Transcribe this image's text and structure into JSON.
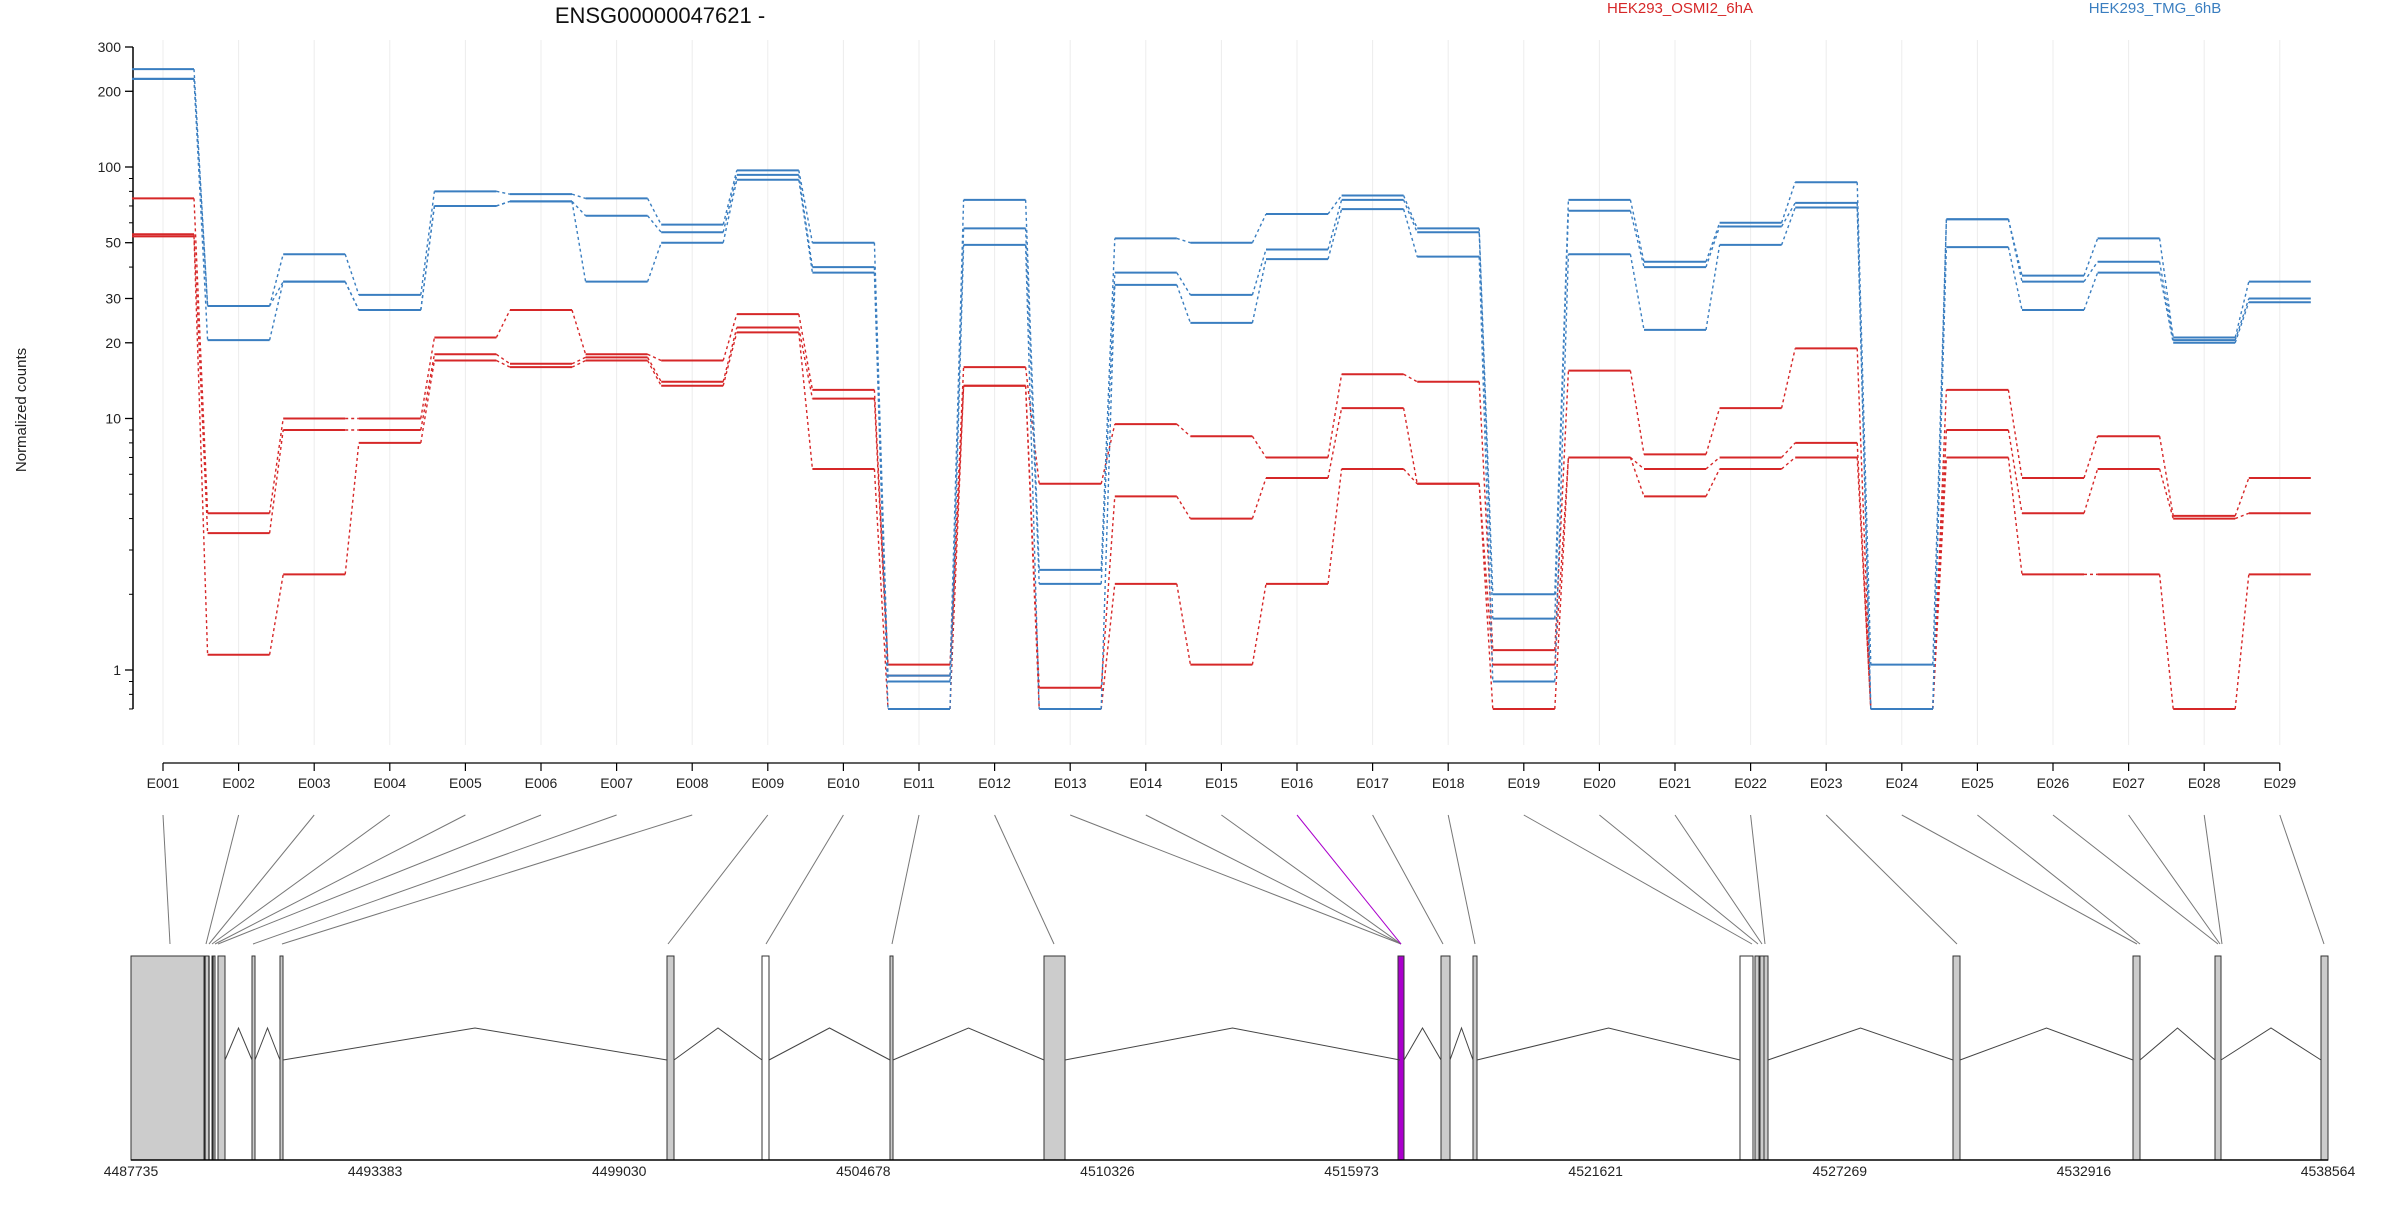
{
  "chart_data": {
    "type": "line",
    "title": "ENSG00000047621 -",
    "ylabel": "Normalized counts",
    "xlabel": "",
    "yscale": "log",
    "ylim": [
      0.7,
      300
    ],
    "ytick_labels": [
      {
        "value": 1,
        "label": "1"
      },
      {
        "value": 10,
        "label": "10"
      },
      {
        "value": 20,
        "label": "20"
      },
      {
        "value": 30,
        "label": "30"
      },
      {
        "value": 50,
        "label": "50"
      },
      {
        "value": 100,
        "label": "100"
      },
      {
        "value": 200,
        "label": "200"
      },
      {
        "value": 300,
        "label": "300"
      }
    ],
    "ytick_minor": [
      0.7,
      0.8,
      0.9,
      2,
      3,
      4,
      5,
      6,
      7,
      8,
      9,
      40,
      60,
      70,
      80,
      90
    ],
    "categories": [
      "E001",
      "E002",
      "E003",
      "E004",
      "E005",
      "E006",
      "E007",
      "E008",
      "E009",
      "E010",
      "E011",
      "E012",
      "E013",
      "E014",
      "E015",
      "E016",
      "E017",
      "E018",
      "E019",
      "E020",
      "E021",
      "E022",
      "E023",
      "E024",
      "E025",
      "E026",
      "E027",
      "E028",
      "E029"
    ],
    "grid": true,
    "legend_placement": "top",
    "series": [
      {
        "name": "HEK293_OSMI2_6hA",
        "color": "#d62728",
        "values": [
          75,
          4.2,
          10,
          10,
          21,
          27,
          18,
          17,
          26,
          13,
          1.05,
          16,
          5.5,
          9.5,
          8.5,
          7,
          15,
          14,
          1.2,
          15.5,
          7.2,
          11,
          19,
          0.7,
          13,
          5.8,
          8.5,
          4.1,
          5.8
        ]
      },
      {
        "name": "HEK293_OSMI2_6hA",
        "color": "#d62728",
        "values": [
          54,
          3.5,
          9,
          9,
          18,
          16.5,
          17.5,
          14,
          23,
          12,
          0.95,
          13.5,
          0.85,
          4.9,
          4,
          5.8,
          11,
          5.5,
          1.05,
          7,
          6.3,
          7,
          8,
          0.7,
          9,
          4.2,
          6.3,
          4,
          4.2
        ]
      },
      {
        "name": "HEK293_OSMI2_6hA",
        "color": "#d62728",
        "values": [
          53,
          1.15,
          2.4,
          8,
          17,
          16,
          17,
          13.5,
          22,
          6.3,
          0.7,
          13.5,
          0.7,
          2.2,
          1.05,
          2.2,
          6.3,
          5.5,
          0.7,
          7,
          4.9,
          6.3,
          7,
          0.7,
          7,
          2.4,
          2.4,
          0.7,
          2.4
        ]
      },
      {
        "name": "HEK293_TMG_6hB",
        "color": "#3a7ec0",
        "values": [
          245,
          28,
          45,
          31,
          80,
          78,
          75,
          59,
          97,
          50,
          0.95,
          74,
          2.5,
          52,
          50,
          65,
          77,
          57,
          2,
          74,
          42,
          60,
          87,
          1.05,
          62,
          37,
          52,
          21,
          35
        ]
      },
      {
        "name": "HEK293_TMG_6hB",
        "color": "#3a7ec0",
        "values": [
          224,
          20.5,
          35,
          27,
          70,
          73,
          64,
          55,
          93,
          40,
          0.9,
          57,
          2.2,
          38,
          31,
          47,
          74,
          55,
          1.6,
          67,
          40,
          58,
          72,
          0.7,
          62,
          35,
          42,
          20.5,
          30
        ]
      },
      {
        "name": "HEK293_TMG_6hB",
        "color": "#3a7ec0",
        "values": [
          224,
          28,
          35,
          27,
          70,
          73,
          35,
          50,
          89,
          38,
          0.7,
          49,
          0.7,
          34,
          24,
          43,
          68,
          44,
          0.9,
          45,
          22.5,
          49,
          69,
          0.7,
          48,
          27,
          38,
          20,
          29
        ]
      }
    ],
    "gene_model": {
      "coordinate_ticks": [
        "4487735",
        "4493383",
        "4499030",
        "4504678",
        "4510326",
        "4515973",
        "4521621",
        "4527269",
        "4532916",
        "4538564"
      ],
      "exon_fill": "#cccccc",
      "exon_white_fill": "#ffffff",
      "highlight_color": "#aa00cc",
      "highlighted_exon": "E016"
    }
  }
}
